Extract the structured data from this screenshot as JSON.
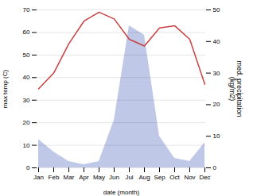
{
  "chart_data": {
    "type": "line",
    "categories": [
      "Jan",
      "Feb",
      "Mar",
      "Apr",
      "May",
      "Jun",
      "Jul",
      "Aug",
      "Sep",
      "Oct",
      "Nov",
      "Dec"
    ],
    "xlabel": "date (month)",
    "ylabel": "max temp (C)",
    "y2label": "med. precipitation\n(kg/m2)",
    "series": [
      {
        "type": "area",
        "axis": "y2",
        "color": "#c0c8e8",
        "values": [
          9,
          5,
          2,
          1,
          2,
          15,
          45,
          42,
          10,
          3,
          2,
          8
        ]
      },
      {
        "type": "line",
        "color": "#c94040",
        "values": [
          35,
          42,
          55,
          65,
          69,
          66,
          57,
          54,
          62,
          63,
          57,
          37
        ]
      }
    ],
    "ylim": [
      0,
      70
    ],
    "yticks": [
      0,
      10,
      20,
      30,
      40,
      50,
      60,
      70
    ],
    "y2lim": [
      0,
      50
    ],
    "y2ticks": [
      0,
      10,
      20,
      30,
      40,
      50
    ],
    "grid": true
  }
}
